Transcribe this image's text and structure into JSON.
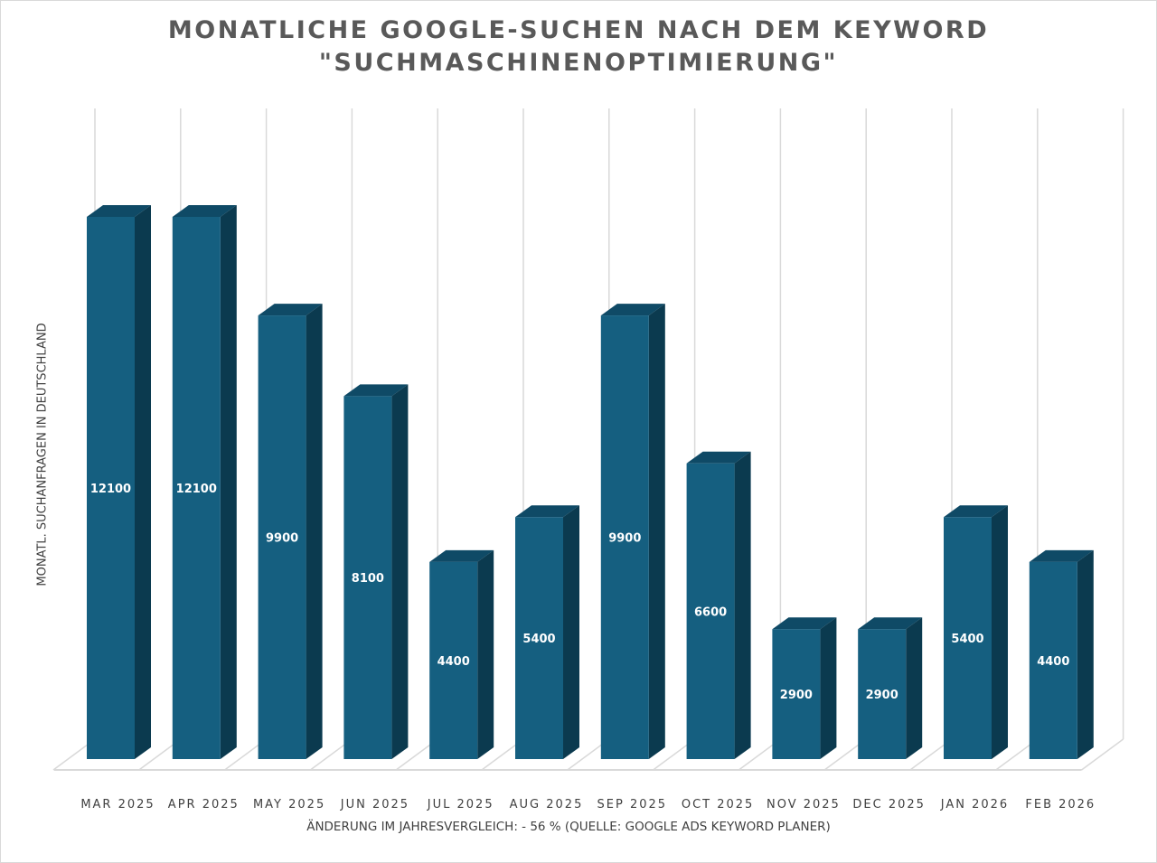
{
  "chart_data": {
    "type": "bar",
    "style": "3d-column",
    "title": "MONATLICHE GOOGLE-SUCHEN NACH DEM KEYWORD \"SUCHMASCHINENOPTIMIERUNG\"",
    "title_lines": [
      "MONATLICHE GOOGLE-SUCHEN NACH DEM KEYWORD",
      "\"SUCHMASCHINENOPTIMIERUNG\""
    ],
    "xlabel": "ÄNDERUNG IM JAHRESVERGLEICH: - 56 % (QUELLE: GOOGLE ADS KEYWORD PLANER)",
    "ylabel": "MONATL. SUCHANFRAGEN IN DEUTSCHLAND",
    "categories": [
      "MAR 2025",
      "APR 2025",
      "MAY 2025",
      "JUN 2025",
      "JUL 2025",
      "AUG 2025",
      "SEP 2025",
      "OCT 2025",
      "NOV 2025",
      "DEC 2025",
      "JAN 2026",
      "FEB 2026"
    ],
    "values": [
      12100,
      12100,
      9900,
      8100,
      4400,
      5400,
      9900,
      6600,
      2900,
      2900,
      5400,
      4400
    ],
    "ylim": [
      0,
      14000
    ],
    "grid": "vertical",
    "data_labels": true,
    "colors": {
      "front": "#155f80",
      "top": "#0f4a66",
      "side": "#0b3a4f",
      "grid": "#d9d9d9"
    }
  }
}
